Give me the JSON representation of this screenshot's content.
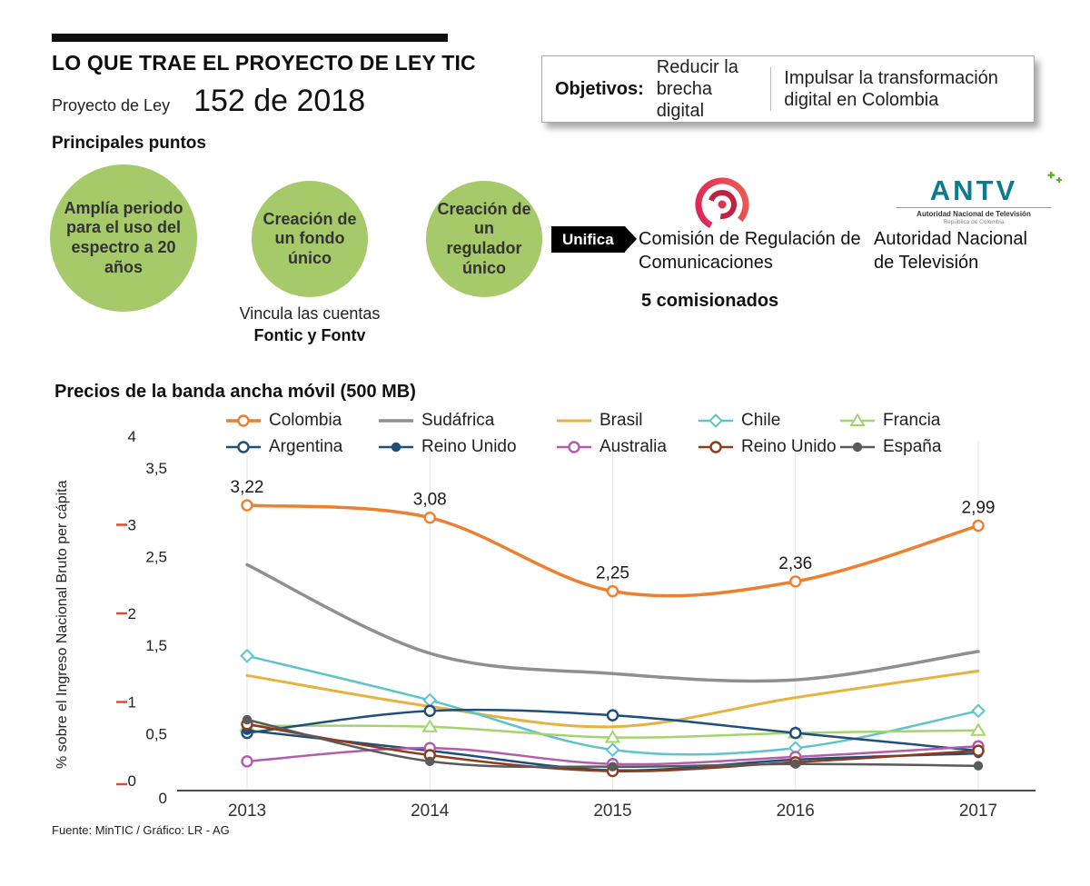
{
  "header": {
    "title": "LO QUE TRAE EL PROYECTO DE LEY TIC",
    "project_label": "Proyecto de Ley",
    "project_number": "152 de 2018",
    "objectives_label": "Objetivos:",
    "objective1": "Reducir la brecha digital",
    "objective2": "Impulsar la transformación digital en Colombia"
  },
  "points": {
    "heading": "Principales puntos",
    "circle1": "Amplía periodo para el uso del espectro a 20 años",
    "circle2": "Creación de un fondo único",
    "circle2_note_line1": "Vincula las cuentas",
    "circle2_note_line2": "Fontic y Fontv",
    "circle3": "Creación de un regulador único",
    "unify_label": "Unifica",
    "crc_name": "Comisión de Regulación de Comunicaciones",
    "crc_commissioners": "5 comisionados",
    "antv": {
      "logo_text": "ANTV",
      "logo_subtext": "Autoridad Nacional de Televisión",
      "logo_subtext2": "República de Colombia",
      "name": "Autoridad Nacional de Televisión"
    }
  },
  "colors": {
    "circle_green": "#a6ca69",
    "accent_black": "#0d0d0d",
    "crc_pink": "#e8486b",
    "crc_red": "#c2203f",
    "antv_teal": "#0b7b90",
    "antv_green": "#5ab031",
    "axis_gray": "#4d4d4d",
    "tick_red": "#e2492f"
  },
  "chart_data": {
    "type": "line",
    "title": "Precios de la banda ancha móvil (500 MB)",
    "ylabel": "% sobre el Ingreso Nacional Bruto per cápita",
    "x_labels": [
      "2013",
      "2014",
      "2015",
      "2016",
      "2017"
    ],
    "ylim": [
      0,
      4
    ],
    "yticks_integer": [
      {
        "v": 4,
        "label": "4"
      },
      {
        "v": 3,
        "label": "3"
      },
      {
        "v": 2,
        "label": "2"
      },
      {
        "v": 1,
        "label": "1"
      },
      {
        "v": 0,
        "label": "0"
      }
    ],
    "yticks_half": [
      {
        "v": 3.5,
        "label": "3,5"
      },
      {
        "v": 2.5,
        "label": "2,5"
      },
      {
        "v": 1.5,
        "label": "1,5"
      },
      {
        "v": 0.5,
        "label": "0,5"
      },
      {
        "v": 0,
        "label": "0"
      }
    ],
    "legend_position": "top",
    "grid": "vertical-light",
    "series": [
      {
        "name": "Colombia",
        "color": "#f07f2d",
        "marker": "circle-open",
        "width": 3.5,
        "values": [
          3.22,
          3.08,
          2.25,
          2.36,
          2.99
        ],
        "point_labels": [
          "3,22",
          "3,08",
          "2,25",
          "2,36",
          "2,99"
        ]
      },
      {
        "name": "Sudáfrica",
        "color": "#8f8f8f",
        "marker": "none",
        "width": 3.5,
        "values": [
          2.55,
          1.55,
          1.32,
          1.25,
          1.57
        ]
      },
      {
        "name": "Brasil",
        "color": "#e7b33f",
        "marker": "none",
        "width": 3,
        "values": [
          1.3,
          0.95,
          0.72,
          1.05,
          1.35
        ]
      },
      {
        "name": "Chile",
        "color": "#5fc3cd",
        "marker": "diamond",
        "width": 2.5,
        "values": [
          1.52,
          1.02,
          0.46,
          0.48,
          0.9
        ]
      },
      {
        "name": "Francia",
        "color": "#a4d46e",
        "marker": "triangle-open",
        "width": 2.5,
        "values": [
          0.73,
          0.72,
          0.6,
          0.65,
          0.68
        ]
      },
      {
        "name": "Argentina",
        "color": "#1f4e79",
        "marker": "circle-open",
        "width": 2.5,
        "values": [
          0.65,
          0.9,
          0.85,
          0.65,
          0.45
        ]
      },
      {
        "name": "Reino Unido",
        "color": "#1f4e79",
        "marker": "circle-filled",
        "width": 2.5,
        "values": [
          0.68,
          0.45,
          0.23,
          0.35,
          0.42
        ]
      },
      {
        "name": "Australia",
        "color": "#b45cac",
        "marker": "circle-open",
        "width": 2.5,
        "values": [
          0.33,
          0.48,
          0.3,
          0.38,
          0.5
        ]
      },
      {
        "name": "Reino Unido",
        "color": "#8e3b1c",
        "marker": "circle-open",
        "width": 2.5,
        "values": [
          0.75,
          0.4,
          0.22,
          0.32,
          0.45
        ]
      },
      {
        "name": "España",
        "color": "#5a5a5a",
        "marker": "circle-filled",
        "width": 2.5,
        "values": [
          0.8,
          0.33,
          0.27,
          0.3,
          0.28
        ]
      }
    ]
  },
  "footer": {
    "source": "Fuente: MinTIC / Gráfico: LR - AG"
  }
}
